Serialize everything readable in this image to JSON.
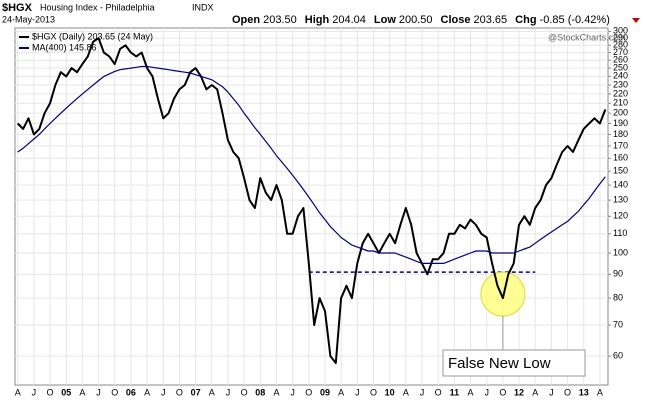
{
  "header": {
    "symbol": "$HGX",
    "name": "Housing Index - Philadelphia",
    "exchange": "INDX",
    "date": "24-May-2013",
    "quote": [
      {
        "label": "Open",
        "value": "203.50"
      },
      {
        "label": "High",
        "value": "204.04"
      },
      {
        "label": "Low",
        "value": "200.50"
      },
      {
        "label": "Close",
        "value": "203.65"
      },
      {
        "label": "Chg",
        "value": "-0.85 (-0.42%)"
      }
    ],
    "watermark": "@StockCharts.com"
  },
  "chart_data": {
    "type": "line",
    "log_scale": true,
    "grid": true,
    "categories": [
      "A",
      null,
      null,
      "J",
      null,
      null,
      "O",
      null,
      null,
      "05",
      null,
      null,
      "A",
      null,
      null,
      "J",
      null,
      null,
      "O",
      null,
      null,
      "06",
      null,
      null,
      "A",
      null,
      null,
      "J",
      null,
      null,
      "O",
      null,
      null,
      "07",
      null,
      null,
      "A",
      null,
      null,
      "J",
      null,
      null,
      "O",
      null,
      null,
      "08",
      null,
      null,
      "A",
      null,
      null,
      "J",
      null,
      null,
      "O",
      null,
      null,
      "09",
      null,
      null,
      "A",
      null,
      null,
      "J",
      null,
      null,
      "O",
      null,
      null,
      "10",
      null,
      null,
      "A",
      null,
      null,
      "J",
      null,
      null,
      "O",
      null,
      null,
      "11",
      null,
      null,
      "A",
      null,
      null,
      "J",
      null,
      null,
      "O",
      null,
      null,
      "12",
      null,
      null,
      "A",
      null,
      null,
      "J",
      null,
      null,
      "O",
      null,
      null,
      "13",
      null,
      null,
      "A",
      null
    ],
    "series": [
      {
        "name": "$HGX (Daily) 203.65 (24 May)",
        "color": "#000000",
        "values": [
          190,
          185,
          195,
          180,
          185,
          200,
          210,
          230,
          245,
          240,
          250,
          245,
          255,
          265,
          285,
          290,
          270,
          265,
          255,
          275,
          280,
          270,
          265,
          270,
          250,
          240,
          215,
          195,
          200,
          215,
          225,
          230,
          245,
          250,
          240,
          225,
          230,
          225,
          200,
          175,
          165,
          160,
          145,
          130,
          125,
          145,
          135,
          130,
          140,
          130,
          110,
          110,
          120,
          125,
          95,
          70,
          80,
          75,
          60,
          58,
          80,
          85,
          80,
          95,
          105,
          110,
          105,
          100,
          105,
          110,
          105,
          115,
          125,
          115,
          100,
          95,
          90,
          97,
          97,
          100,
          110,
          110,
          115,
          113,
          118,
          115,
          110,
          108,
          95,
          85,
          80,
          90,
          95,
          115,
          120,
          115,
          125,
          130,
          140,
          145,
          155,
          165,
          170,
          165,
          175,
          185,
          190,
          195,
          190,
          203.65
        ]
      },
      {
        "name": "MA(400) 145.86",
        "color": "#00008b",
        "values": [
          165,
          168,
          172,
          176,
          180,
          185,
          190,
          195,
          200,
          205,
          210,
          215,
          220,
          225,
          230,
          235,
          240,
          243,
          246,
          248,
          249,
          250,
          251,
          252,
          252,
          251,
          250,
          249,
          248,
          247,
          246,
          245,
          244,
          242,
          240,
          238,
          236,
          232,
          228,
          222,
          215,
          208,
          200,
          193,
          186,
          180,
          174,
          168,
          162,
          157,
          152,
          147,
          142,
          137,
          132,
          127,
          122,
          118,
          114,
          111,
          108,
          106,
          104,
          103,
          102,
          101,
          101,
          100,
          100,
          100,
          100,
          99,
          98,
          97,
          96,
          95,
          95,
          95,
          95,
          95,
          96,
          97,
          98,
          99,
          100,
          101,
          101,
          101,
          100,
          100,
          100,
          100,
          100,
          101,
          102,
          103,
          105,
          107,
          109,
          111,
          113,
          115,
          117,
          120,
          123,
          127,
          131,
          136,
          141,
          145.86
        ]
      }
    ],
    "ylim": [
      52,
      305
    ],
    "yticks": [
      60,
      70,
      80,
      90,
      100,
      110,
      120,
      130,
      140,
      150,
      160,
      170,
      180,
      190,
      200,
      210,
      220,
      230,
      240,
      250,
      260,
      270,
      280,
      290,
      300
    ],
    "reference_line": {
      "value": 91,
      "color": "#00008b"
    },
    "annotation": "False New Low"
  }
}
